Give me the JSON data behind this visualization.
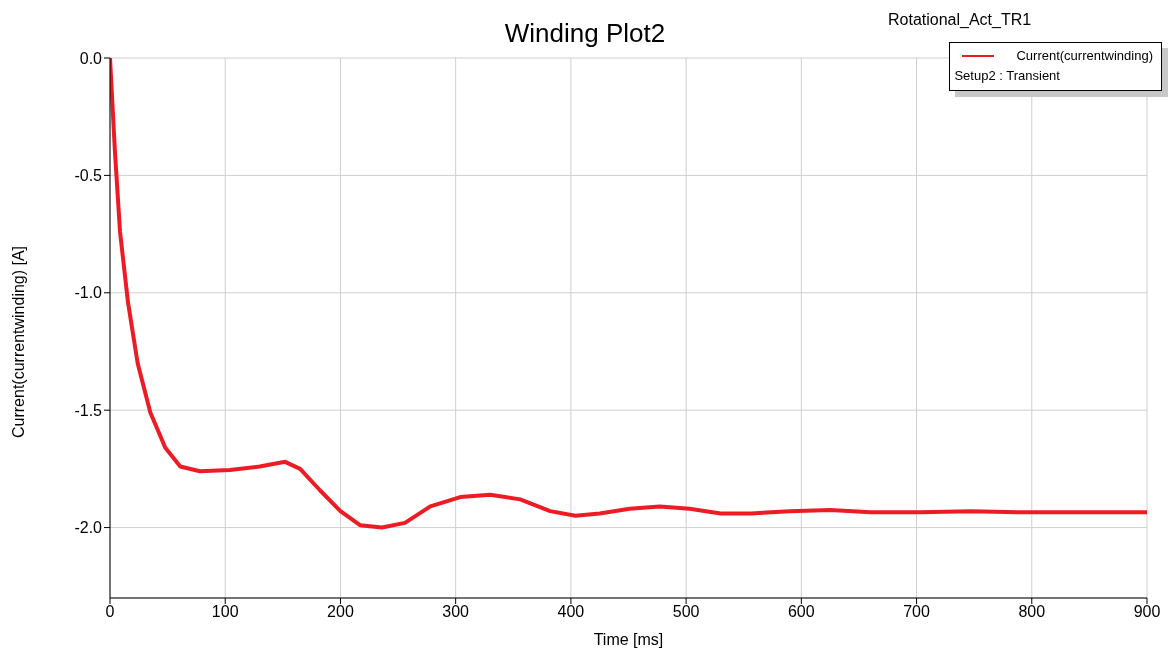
{
  "chart_data": {
    "type": "line",
    "title": "Winding Plot2",
    "subtitle": "Rotational_Act_TR1",
    "xlabel": "Time [ms]",
    "ylabel": "Current(currentwinding) [A]",
    "annotations": [
      "Setup2 : Transient"
    ],
    "xlim": [
      0,
      900
    ],
    "xticks": [
      0,
      100,
      200,
      300,
      400,
      500,
      600,
      700,
      800,
      900
    ],
    "ylim": [
      -2.3,
      0
    ],
    "yticks": [
      {
        "value": 0,
        "label": "0.0"
      },
      -0.5,
      {
        "value": -1,
        "label": "-1.0"
      },
      -1.5,
      {
        "value": -2,
        "label": "-2.0"
      }
    ],
    "grid": true,
    "legend": "top right",
    "marker": "none",
    "line_style": "solid",
    "series": [
      {
        "name": "Current(currentwinding)",
        "color": "#ed1c24",
        "x": [
          0,
          4.3,
          8.7,
          15.6,
          24,
          35,
          48,
          61,
          78,
          104,
          130,
          152,
          165,
          182,
          200,
          217,
          236,
          256,
          278,
          304,
          330,
          356,
          382,
          404,
          425,
          451,
          477,
          503,
          530,
          556,
          590,
          625,
          660,
          703,
          747,
          790,
          842,
          900
        ],
        "values": [
          0,
          -0.4,
          -0.74,
          -1.04,
          -1.3,
          -1.51,
          -1.66,
          -1.74,
          -1.76,
          -1.755,
          -1.74,
          -1.72,
          -1.75,
          -1.84,
          -1.93,
          -1.99,
          -2.0,
          -1.98,
          -1.91,
          -1.87,
          -1.86,
          -1.88,
          -1.93,
          -1.95,
          -1.94,
          -1.92,
          -1.91,
          -1.92,
          -1.94,
          -1.94,
          -1.93,
          -1.925,
          -1.935,
          -1.935,
          -1.93,
          -1.935,
          -1.935,
          -1.935
        ]
      }
    ]
  }
}
